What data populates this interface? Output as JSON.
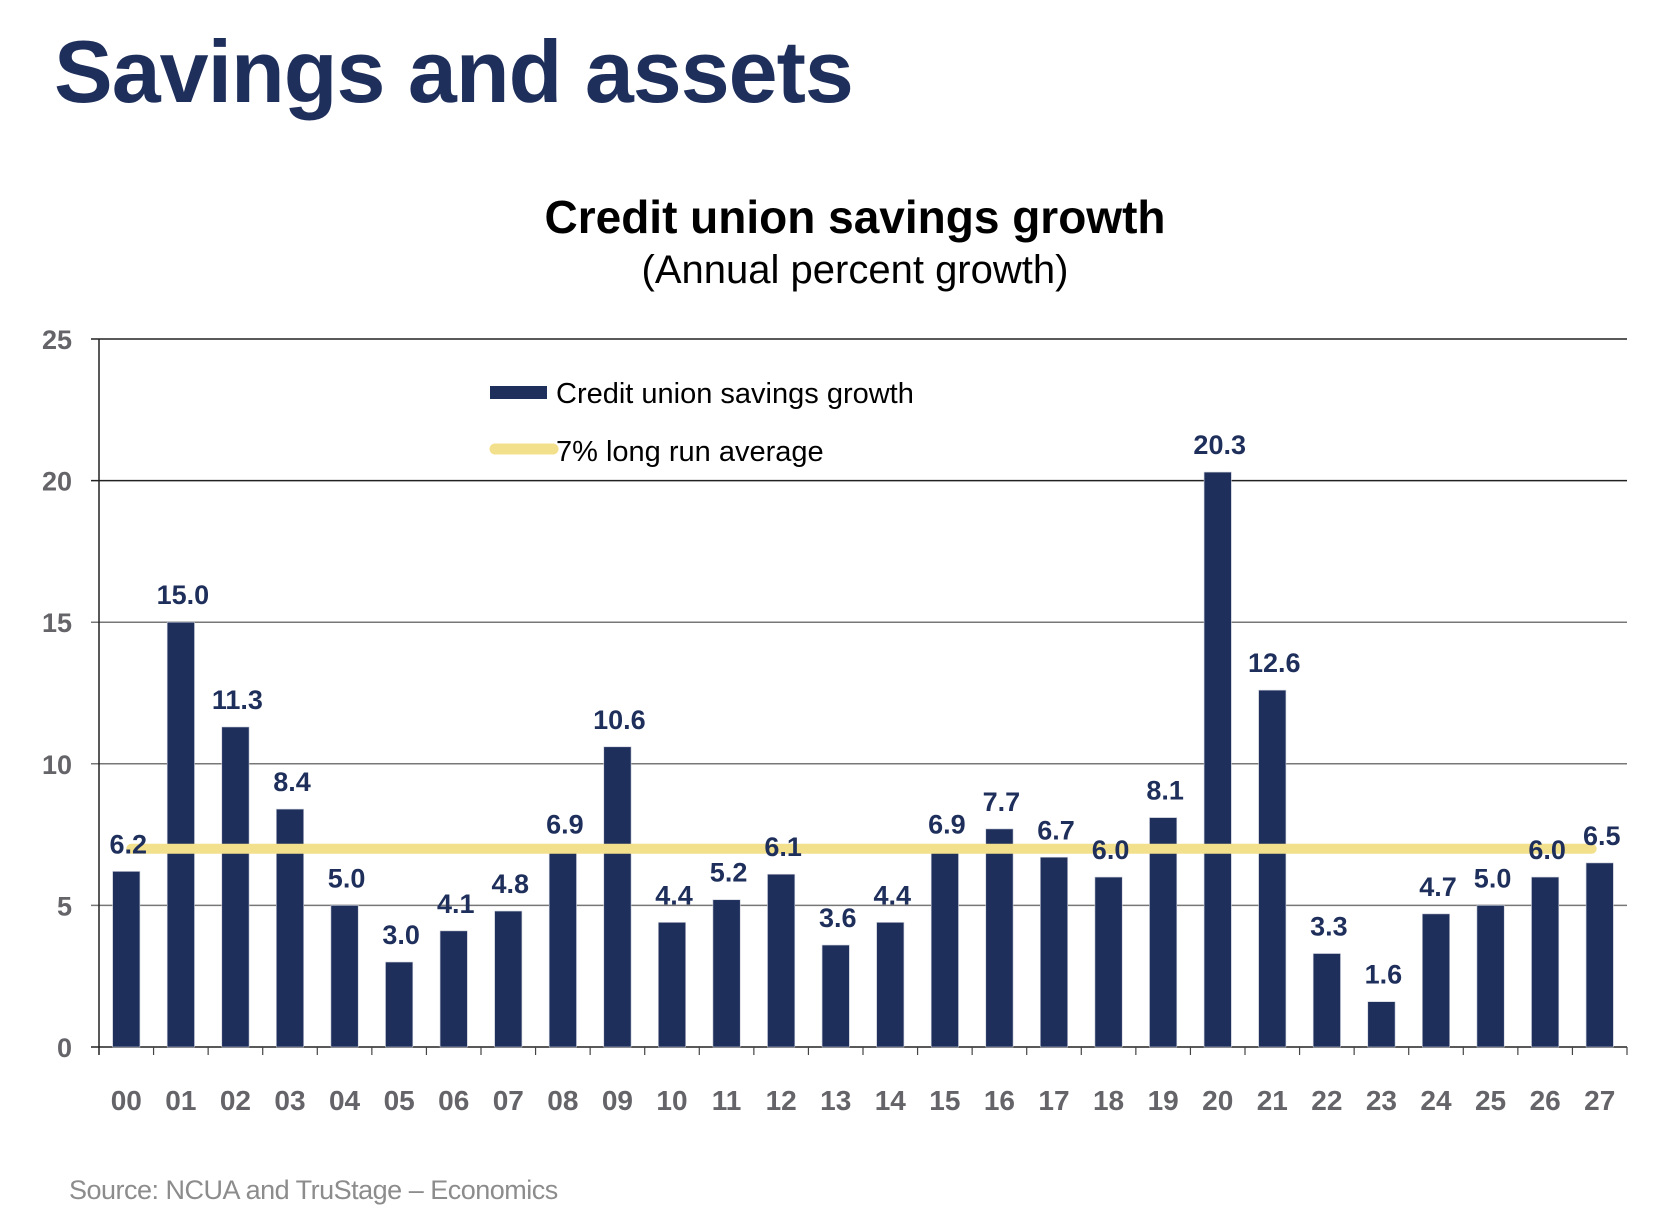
{
  "page": {
    "title": "Savings and assets",
    "source": "Source: NCUA and TruStage – Economics"
  },
  "colors": {
    "title": "#1f2f5c",
    "bar": "#1f2f5c",
    "average_line": "#f3e08c",
    "axis_text": "#646469",
    "source_text": "#8c8c8c"
  },
  "chart_data": {
    "type": "bar",
    "title": "Credit union savings growth",
    "subtitle": "(Annual percent growth)",
    "xlabel": "",
    "ylabel": "",
    "ylim": [
      0,
      25
    ],
    "yticks": [
      0,
      5,
      10,
      15,
      20,
      25
    ],
    "grid": true,
    "legend_position": "top-center",
    "categories": [
      "00",
      "01",
      "02",
      "03",
      "04",
      "05",
      "06",
      "07",
      "08",
      "09",
      "10",
      "11",
      "12",
      "13",
      "14",
      "15",
      "16",
      "17",
      "18",
      "19",
      "20",
      "21",
      "22",
      "23",
      "24",
      "25",
      "26",
      "27"
    ],
    "series": [
      {
        "name": "Credit union savings growth",
        "type": "bar",
        "values": [
          6.2,
          15.0,
          11.3,
          8.4,
          5.0,
          3.0,
          4.1,
          4.8,
          6.9,
          10.6,
          4.4,
          5.2,
          6.1,
          3.6,
          4.4,
          6.9,
          7.7,
          6.7,
          6.0,
          8.1,
          20.3,
          12.6,
          3.3,
          1.6,
          4.7,
          5.0,
          6.0,
          6.5
        ],
        "data_labels": [
          "6.2",
          "15.0",
          "11.3",
          "8.4",
          "5.0",
          "3.0",
          "4.1",
          "4.8",
          "6.9",
          "10.6",
          "4.4",
          "5.2",
          "6.1",
          "3.6",
          "4.4",
          "6.9",
          "7.7",
          "6.7",
          "6.0",
          "8.1",
          "20.3",
          "12.6",
          "3.3",
          "1.6",
          "4.7",
          "5.0",
          "6.0",
          "6.5"
        ]
      },
      {
        "name": "7% long run average",
        "type": "line",
        "value": 7
      }
    ],
    "legend": [
      "Credit union savings growth",
      "7% long run average"
    ]
  }
}
